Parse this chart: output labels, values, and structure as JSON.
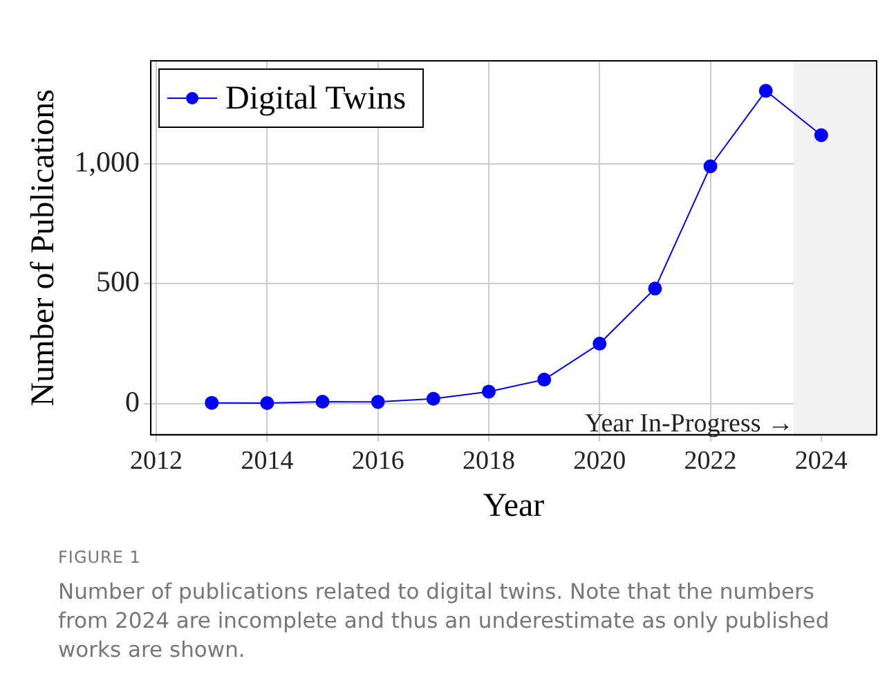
{
  "chart_data": {
    "type": "line",
    "xlabel": "Year",
    "ylabel": "Number of Publications",
    "x": [
      2013,
      2014,
      2015,
      2016,
      2017,
      2018,
      2019,
      2020,
      2021,
      2022,
      2023,
      2024
    ],
    "series": [
      {
        "name": "Digital Twins",
        "color": "#0000ff",
        "values": [
          3,
          2,
          8,
          7,
          20,
          50,
          100,
          250,
          480,
          990,
          1305,
          1120
        ]
      }
    ],
    "xlim": [
      2011.9,
      2025
    ],
    "xticks": [
      2012,
      2014,
      2016,
      2018,
      2020,
      2022,
      2024
    ],
    "ylim": [
      -130,
      1430
    ],
    "yticks": [
      0,
      500,
      {
        "value": 1000,
        "label": "1,000"
      }
    ],
    "bands": [
      {
        "axis": "x",
        "from": 2023.5,
        "to": 2025,
        "label": "Year In-Progress →",
        "color": "#f2f2f2"
      }
    ],
    "annotations": [
      "FIGURE 1",
      "Number of publications related to digital twins. Note that the numbers from 2024 are incomplete and thus an underestimate as only published works are shown."
    ],
    "grid": true,
    "legend": "top left",
    "marker": "circle",
    "line_style": "solid"
  }
}
